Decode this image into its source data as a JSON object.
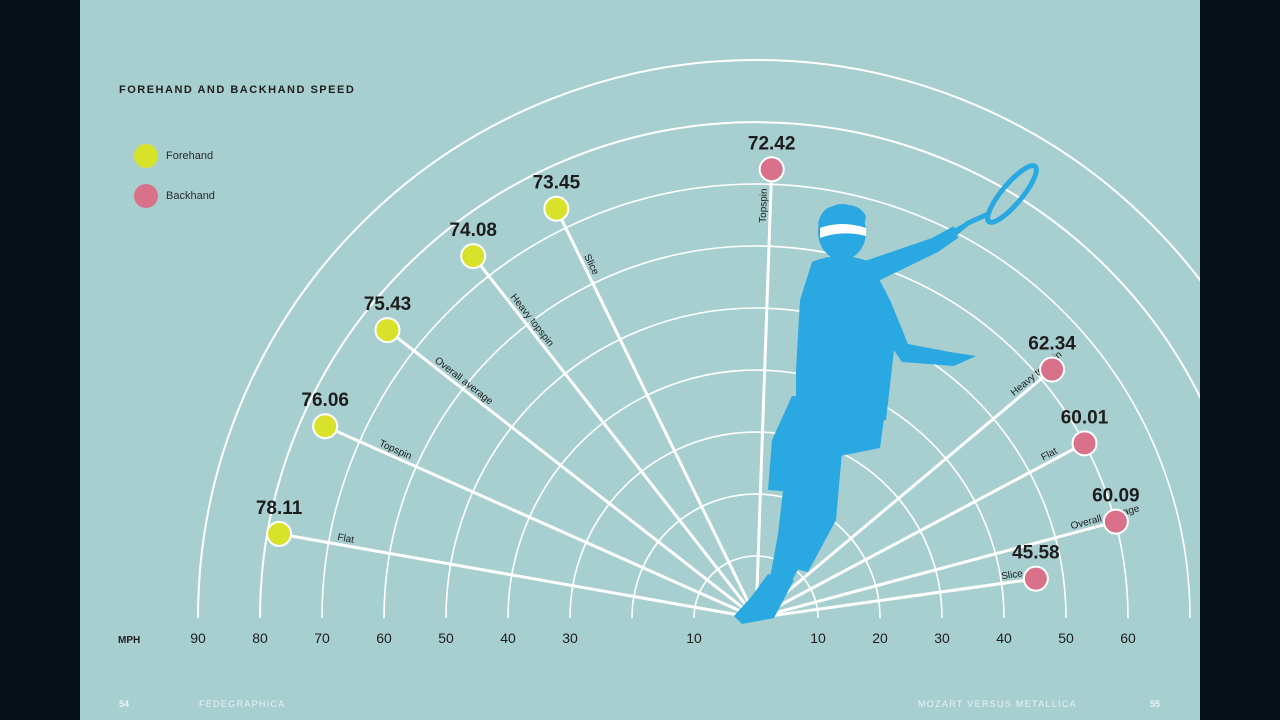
{
  "title": "FOREHAND AND BACKHAND SPEED",
  "legend": [
    {
      "label": "Forehand",
      "color": "#d8e22a"
    },
    {
      "label": "Backhand",
      "color": "#d9718a"
    }
  ],
  "footer": {
    "left_page": "54",
    "left_text": "FEDEGRAPHICA",
    "right_text": "MOZART VERSUS METALLICA",
    "right_page": "55"
  },
  "colors": {
    "background": "#a8cfd0",
    "frame": "#08111a",
    "lines": "#ffffff",
    "silhouette": "#2aa8e2"
  },
  "icons": {
    "player": "tennis-player-silhouette-icon"
  },
  "chart_data": {
    "type": "radial",
    "title": "FOREHAND AND BACKHAND SPEED",
    "unit_label": "MPH",
    "left_axis_ticks": [
      90,
      80,
      70,
      60,
      50,
      40,
      30,
      10
    ],
    "right_axis_ticks": [
      10,
      20,
      30,
      40,
      50,
      60
    ],
    "series": [
      {
        "name": "Forehand",
        "color": "#d8e22a",
        "points": [
          {
            "label": "Flat",
            "value": 78.11
          },
          {
            "label": "Topspin",
            "value": 76.06
          },
          {
            "label": "Overall average",
            "value": 75.43
          },
          {
            "label": "Heavy topspin",
            "value": 74.08
          },
          {
            "label": "Slice",
            "value": 73.45
          }
        ]
      },
      {
        "name": "Backhand",
        "color": "#d9718a",
        "points": [
          {
            "label": "Topspin",
            "value": 72.42
          },
          {
            "label": "Heavy topspin",
            "value": 62.34
          },
          {
            "label": "Flat",
            "value": 60.01
          },
          {
            "label": "Overall average",
            "value": 60.09
          },
          {
            "label": "Slice",
            "value": 45.58
          }
        ]
      }
    ]
  }
}
